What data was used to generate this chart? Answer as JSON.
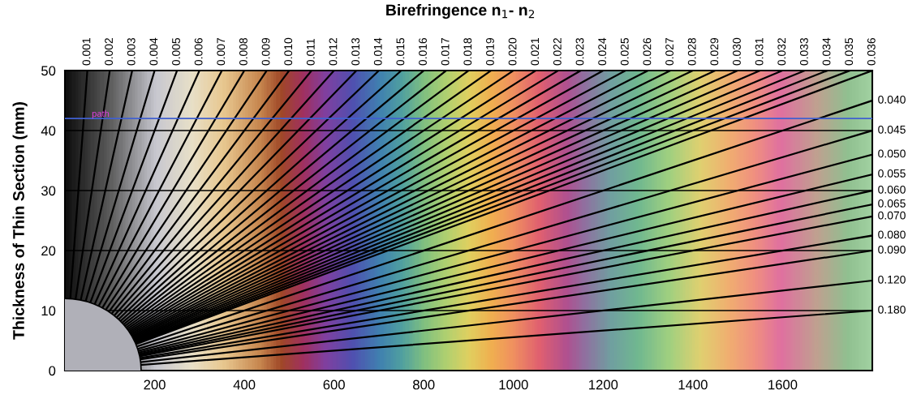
{
  "chart_data": {
    "type": "line",
    "title": "Birefringence n$_{1}$- n$_{2}$",
    "ylabel": "Thickness of Thin Section (mm)",
    "xlim": [
      0,
      1800
    ],
    "xticks": [
      200,
      400,
      600,
      800,
      1000,
      1200,
      1400,
      1600
    ],
    "ylim": [
      0,
      50
    ],
    "yticks": [
      0,
      10,
      20,
      30,
      40,
      50
    ],
    "grid": "y",
    "legend": false,
    "ref_lines": [
      {
        "axis": "y",
        "value": 42,
        "label": "path",
        "color": "#4060d0"
      }
    ],
    "series": [
      {
        "name": "0.001",
        "color": "#000000",
        "x": [
          0,
          50
        ],
        "values": [
          0,
          50
        ]
      },
      {
        "name": "0.002",
        "color": "#000000",
        "x": [
          0,
          100
        ],
        "values": [
          0,
          50
        ]
      },
      {
        "name": "0.003",
        "color": "#000000",
        "x": [
          0,
          150
        ],
        "values": [
          0,
          50
        ]
      },
      {
        "name": "0.004",
        "color": "#000000",
        "x": [
          0,
          200
        ],
        "values": [
          0,
          50
        ]
      },
      {
        "name": "0.005",
        "color": "#000000",
        "x": [
          0,
          250
        ],
        "values": [
          0,
          50
        ]
      },
      {
        "name": "0.006",
        "color": "#000000",
        "x": [
          0,
          300
        ],
        "values": [
          0,
          50
        ]
      },
      {
        "name": "0.007",
        "color": "#000000",
        "x": [
          0,
          350
        ],
        "values": [
          0,
          50
        ]
      },
      {
        "name": "0.008",
        "color": "#000000",
        "x": [
          0,
          400
        ],
        "values": [
          0,
          50
        ]
      },
      {
        "name": "0.009",
        "color": "#000000",
        "x": [
          0,
          450
        ],
        "values": [
          0,
          50
        ]
      },
      {
        "name": "0.010",
        "color": "#000000",
        "x": [
          0,
          500
        ],
        "values": [
          0,
          50
        ]
      },
      {
        "name": "0.011",
        "color": "#000000",
        "x": [
          0,
          550
        ],
        "values": [
          0,
          50
        ]
      },
      {
        "name": "0.012",
        "color": "#000000",
        "x": [
          0,
          600
        ],
        "values": [
          0,
          50
        ]
      },
      {
        "name": "0.013",
        "color": "#000000",
        "x": [
          0,
          650
        ],
        "values": [
          0,
          50
        ]
      },
      {
        "name": "0.014",
        "color": "#000000",
        "x": [
          0,
          700
        ],
        "values": [
          0,
          50
        ]
      },
      {
        "name": "0.015",
        "color": "#000000",
        "x": [
          0,
          750
        ],
        "values": [
          0,
          50
        ]
      },
      {
        "name": "0.016",
        "color": "#000000",
        "x": [
          0,
          800
        ],
        "values": [
          0,
          50
        ]
      },
      {
        "name": "0.017",
        "color": "#000000",
        "x": [
          0,
          850
        ],
        "values": [
          0,
          50
        ]
      },
      {
        "name": "0.018",
        "color": "#000000",
        "x": [
          0,
          900
        ],
        "values": [
          0,
          50
        ]
      },
      {
        "name": "0.019",
        "color": "#000000",
        "x": [
          0,
          950
        ],
        "values": [
          0,
          50
        ]
      },
      {
        "name": "0.020",
        "color": "#000000",
        "x": [
          0,
          1000
        ],
        "values": [
          0,
          50
        ]
      },
      {
        "name": "0.021",
        "color": "#000000",
        "x": [
          0,
          1050
        ],
        "values": [
          0,
          50
        ]
      },
      {
        "name": "0.022",
        "color": "#000000",
        "x": [
          0,
          1100
        ],
        "values": [
          0,
          50
        ]
      },
      {
        "name": "0.023",
        "color": "#000000",
        "x": [
          0,
          1150
        ],
        "values": [
          0,
          50
        ]
      },
      {
        "name": "0.024",
        "color": "#000000",
        "x": [
          0,
          1200
        ],
        "values": [
          0,
          50
        ]
      },
      {
        "name": "0.025",
        "color": "#000000",
        "x": [
          0,
          1250
        ],
        "values": [
          0,
          50
        ]
      },
      {
        "name": "0.026",
        "color": "#000000",
        "x": [
          0,
          1300
        ],
        "values": [
          0,
          50
        ]
      },
      {
        "name": "0.027",
        "color": "#000000",
        "x": [
          0,
          1350
        ],
        "values": [
          0,
          50
        ]
      },
      {
        "name": "0.028",
        "color": "#000000",
        "x": [
          0,
          1400
        ],
        "values": [
          0,
          50
        ]
      },
      {
        "name": "0.029",
        "color": "#000000",
        "x": [
          0,
          1450
        ],
        "values": [
          0,
          50
        ]
      },
      {
        "name": "0.030",
        "color": "#000000",
        "x": [
          0,
          1500
        ],
        "values": [
          0,
          50
        ]
      },
      {
        "name": "0.031",
        "color": "#000000",
        "x": [
          0,
          1550
        ],
        "values": [
          0,
          50
        ]
      },
      {
        "name": "0.032",
        "color": "#000000",
        "x": [
          0,
          1600
        ],
        "values": [
          0,
          50
        ]
      },
      {
        "name": "0.033",
        "color": "#000000",
        "x": [
          0,
          1650
        ],
        "values": [
          0,
          50
        ]
      },
      {
        "name": "0.034",
        "color": "#000000",
        "x": [
          0,
          1700
        ],
        "values": [
          0,
          50
        ]
      },
      {
        "name": "0.035",
        "color": "#000000",
        "x": [
          0,
          1750
        ],
        "values": [
          0,
          50
        ]
      },
      {
        "name": "0.036",
        "color": "#000000",
        "x": [
          0,
          1800
        ],
        "values": [
          0,
          50
        ]
      },
      {
        "name": "0.040",
        "color": "#000000",
        "x": [
          0,
          1800
        ],
        "values": [
          0,
          45
        ]
      },
      {
        "name": "0.045",
        "color": "#000000",
        "x": [
          0,
          1800
        ],
        "values": [
          0,
          40
        ]
      },
      {
        "name": "0.050",
        "color": "#000000",
        "x": [
          0,
          1800
        ],
        "values": [
          0,
          36
        ]
      },
      {
        "name": "0.055",
        "color": "#000000",
        "x": [
          0,
          1800
        ],
        "values": [
          0,
          32.7
        ]
      },
      {
        "name": "0.060",
        "color": "#000000",
        "x": [
          0,
          1800
        ],
        "values": [
          0,
          30
        ]
      },
      {
        "name": "0.065",
        "color": "#000000",
        "x": [
          0,
          1800
        ],
        "values": [
          0,
          27.7
        ]
      },
      {
        "name": "0.070",
        "color": "#000000",
        "x": [
          0,
          1800
        ],
        "values": [
          0,
          25.7
        ]
      },
      {
        "name": "0.080",
        "color": "#000000",
        "x": [
          0,
          1800
        ],
        "values": [
          0,
          22.5
        ]
      },
      {
        "name": "0.090",
        "color": "#000000",
        "x": [
          0,
          1800
        ],
        "values": [
          0,
          20
        ]
      },
      {
        "name": "0.120",
        "color": "#000000",
        "x": [
          0,
          1800
        ],
        "values": [
          0,
          15
        ]
      },
      {
        "name": "0.180",
        "color": "#000000",
        "x": [
          0,
          1800
        ],
        "values": [
          0,
          10
        ]
      }
    ]
  }
}
